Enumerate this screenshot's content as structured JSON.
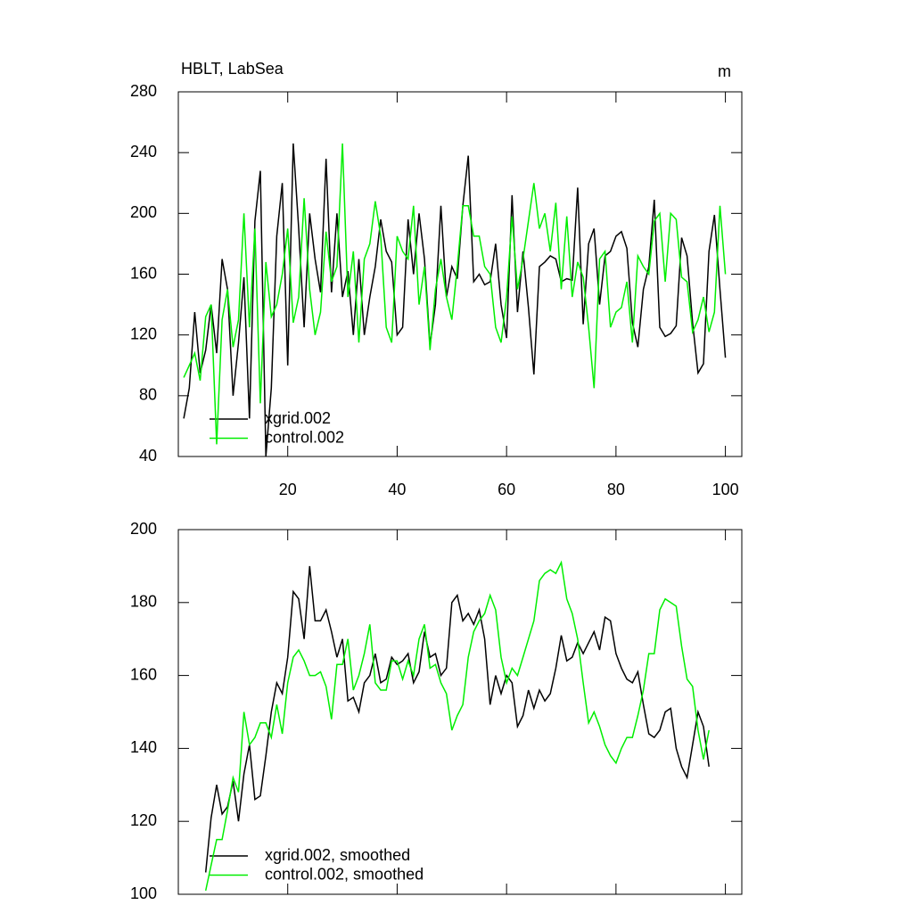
{
  "chart_data": [
    {
      "type": "line",
      "title": "HBLT, LabSea",
      "y_units": "m",
      "x": [
        1,
        2,
        3,
        4,
        5,
        6,
        7,
        8,
        9,
        10,
        11,
        12,
        13,
        14,
        15,
        16,
        17,
        18,
        19,
        20,
        21,
        22,
        23,
        24,
        25,
        26,
        27,
        28,
        29,
        30,
        31,
        32,
        33,
        34,
        35,
        36,
        37,
        38,
        39,
        40,
        41,
        42,
        43,
        44,
        45,
        46,
        47,
        48,
        49,
        50,
        51,
        52,
        53,
        54,
        55,
        56,
        57,
        58,
        59,
        60,
        61,
        62,
        63,
        64,
        65,
        66,
        67,
        68,
        69,
        70,
        71,
        72,
        73,
        74,
        75,
        76,
        77,
        78,
        79,
        80,
        81,
        82,
        83,
        84,
        85,
        86,
        87,
        88,
        89,
        90,
        91,
        92,
        93,
        94,
        95,
        96,
        97,
        98,
        99,
        100
      ],
      "series": [
        {
          "name": "xgrid.002",
          "color": "#000000",
          "values": [
            65,
            85,
            135,
            95,
            110,
            140,
            108,
            170,
            150,
            80,
            115,
            158,
            65,
            195,
            228,
            40,
            85,
            185,
            220,
            100,
            246,
            190,
            125,
            200,
            170,
            148,
            236,
            148,
            200,
            145,
            162,
            120,
            170,
            120,
            145,
            165,
            196,
            175,
            168,
            120,
            125,
            196,
            160,
            200,
            170,
            113,
            140,
            205,
            145,
            165,
            157,
            205,
            238,
            155,
            160,
            153,
            155,
            180,
            140,
            118,
            212,
            135,
            175,
            138,
            94,
            165,
            168,
            172,
            170,
            155,
            157,
            156,
            217,
            127,
            180,
            190,
            140,
            172,
            175,
            185,
            188,
            177,
            128,
            112,
            150,
            165,
            209,
            125,
            119,
            121,
            126,
            184,
            172,
            128,
            95,
            101,
            175,
            199,
            150,
            105
          ]
        },
        {
          "name": "control.002",
          "color": "#00ee00",
          "values": [
            92,
            100,
            108,
            90,
            132,
            140,
            48,
            130,
            150,
            112,
            130,
            200,
            125,
            190,
            75,
            168,
            132,
            140,
            160,
            190,
            128,
            145,
            210,
            150,
            120,
            135,
            188,
            155,
            165,
            246,
            145,
            175,
            115,
            170,
            180,
            208,
            185,
            125,
            115,
            185,
            175,
            170,
            205,
            140,
            165,
            110,
            150,
            170,
            145,
            130,
            165,
            205,
            205,
            185,
            185,
            165,
            160,
            125,
            115,
            145,
            198,
            150,
            170,
            195,
            220,
            190,
            200,
            175,
            207,
            150,
            198,
            145,
            168,
            158,
            125,
            85,
            170,
            175,
            125,
            135,
            138,
            155,
            115,
            172,
            165,
            160,
            195,
            200,
            155,
            200,
            196,
            158,
            155,
            122,
            130,
            145,
            122,
            135,
            205,
            160
          ]
        }
      ],
      "xlim": [
        0,
        103
      ],
      "xticks": [
        20,
        40,
        60,
        80,
        100
      ],
      "ylim": [
        40,
        280
      ],
      "yticks": [
        40,
        80,
        120,
        160,
        200,
        240,
        280
      ]
    },
    {
      "type": "line",
      "x": [
        5,
        6,
        7,
        8,
        9,
        10,
        11,
        12,
        13,
        14,
        15,
        16,
        17,
        18,
        19,
        20,
        21,
        22,
        23,
        24,
        25,
        26,
        27,
        28,
        29,
        30,
        31,
        32,
        33,
        34,
        35,
        36,
        37,
        38,
        39,
        40,
        41,
        42,
        43,
        44,
        45,
        46,
        47,
        48,
        49,
        50,
        51,
        52,
        53,
        54,
        55,
        56,
        57,
        58,
        59,
        60,
        61,
        62,
        63,
        64,
        65,
        66,
        67,
        68,
        69,
        70,
        71,
        72,
        73,
        74,
        75,
        76,
        77,
        78,
        79,
        80,
        81,
        82,
        83,
        84,
        85,
        86,
        87,
        88,
        89,
        90,
        91,
        92,
        93,
        94,
        95,
        96,
        97
      ],
      "series": [
        {
          "name": "xgrid.002, smoothed",
          "color": "#000000",
          "values": [
            106,
            121,
            130,
            122,
            124,
            131,
            120,
            133,
            141,
            126,
            127,
            138,
            150,
            158,
            155,
            165,
            183,
            181,
            170,
            190,
            175,
            175,
            178,
            172,
            165,
            170,
            153,
            154,
            150,
            158,
            160,
            166,
            158,
            159,
            165,
            163,
            164,
            166,
            158,
            161,
            172,
            165,
            166,
            160,
            162,
            180,
            182,
            175,
            177,
            174,
            178,
            170,
            152,
            160,
            155,
            160,
            158,
            146,
            149,
            156,
            151,
            156,
            153,
            155,
            162,
            171,
            164,
            165,
            169,
            166,
            169,
            172,
            167,
            176,
            175,
            166,
            162,
            159,
            158,
            161,
            152,
            144,
            143,
            145,
            150,
            151,
            140,
            135,
            132,
            141,
            150,
            146,
            135
          ]
        },
        {
          "name": "control.002, smoothed",
          "color": "#00ee00",
          "values": [
            101,
            108,
            115,
            115,
            123,
            132,
            128,
            150,
            141,
            143,
            147,
            147,
            143,
            152,
            144,
            158,
            165,
            167,
            164,
            160,
            160,
            161,
            157,
            148,
            163,
            163,
            170,
            156,
            160,
            166,
            174,
            158,
            156,
            156,
            164,
            164,
            159,
            164,
            160,
            170,
            174,
            162,
            163,
            158,
            155,
            145,
            149,
            152,
            165,
            172,
            175,
            177,
            182,
            178,
            165,
            158,
            162,
            160,
            165,
            170,
            175,
            186,
            188,
            189,
            188,
            191,
            181,
            177,
            170,
            158,
            147,
            150,
            146,
            141,
            138,
            136,
            140,
            143,
            143,
            149,
            156,
            166,
            166,
            178,
            181,
            180,
            179,
            168,
            159,
            157,
            145,
            137,
            145
          ]
        }
      ],
      "xlim": [
        0,
        103
      ],
      "xticks": [
        20,
        40,
        60,
        80,
        100
      ],
      "ylim": [
        100,
        200
      ],
      "yticks": [
        100,
        120,
        140,
        160,
        180,
        200
      ]
    }
  ]
}
